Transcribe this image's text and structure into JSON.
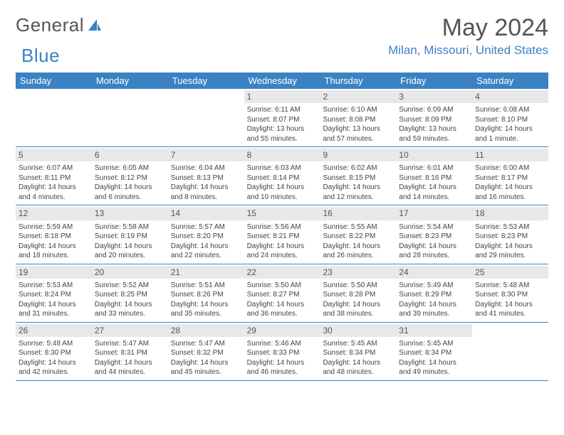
{
  "brand": {
    "part1": "General",
    "part2": "Blue"
  },
  "title": "May 2024",
  "location": "Milan, Missouri, United States",
  "colors": {
    "header_bg": "#3b82c4",
    "header_text": "#ffffff",
    "daynum_bg": "#e8e8e8",
    "text": "#333333",
    "brand_gray": "#555555",
    "brand_blue": "#3b82c4",
    "row_border": "#3b82c4",
    "page_bg": "#ffffff"
  },
  "weekdays": [
    "Sunday",
    "Monday",
    "Tuesday",
    "Wednesday",
    "Thursday",
    "Friday",
    "Saturday"
  ],
  "weeks": [
    [
      {
        "empty": true
      },
      {
        "empty": true
      },
      {
        "empty": true
      },
      {
        "num": "1",
        "sunrise": "Sunrise: 6:11 AM",
        "sunset": "Sunset: 8:07 PM",
        "daylight": "Daylight: 13 hours and 55 minutes."
      },
      {
        "num": "2",
        "sunrise": "Sunrise: 6:10 AM",
        "sunset": "Sunset: 8:08 PM",
        "daylight": "Daylight: 13 hours and 57 minutes."
      },
      {
        "num": "3",
        "sunrise": "Sunrise: 6:09 AM",
        "sunset": "Sunset: 8:09 PM",
        "daylight": "Daylight: 13 hours and 59 minutes."
      },
      {
        "num": "4",
        "sunrise": "Sunrise: 6:08 AM",
        "sunset": "Sunset: 8:10 PM",
        "daylight": "Daylight: 14 hours and 1 minute."
      }
    ],
    [
      {
        "num": "5",
        "sunrise": "Sunrise: 6:07 AM",
        "sunset": "Sunset: 8:11 PM",
        "daylight": "Daylight: 14 hours and 4 minutes."
      },
      {
        "num": "6",
        "sunrise": "Sunrise: 6:05 AM",
        "sunset": "Sunset: 8:12 PM",
        "daylight": "Daylight: 14 hours and 6 minutes."
      },
      {
        "num": "7",
        "sunrise": "Sunrise: 6:04 AM",
        "sunset": "Sunset: 8:13 PM",
        "daylight": "Daylight: 14 hours and 8 minutes."
      },
      {
        "num": "8",
        "sunrise": "Sunrise: 6:03 AM",
        "sunset": "Sunset: 8:14 PM",
        "daylight": "Daylight: 14 hours and 10 minutes."
      },
      {
        "num": "9",
        "sunrise": "Sunrise: 6:02 AM",
        "sunset": "Sunset: 8:15 PM",
        "daylight": "Daylight: 14 hours and 12 minutes."
      },
      {
        "num": "10",
        "sunrise": "Sunrise: 6:01 AM",
        "sunset": "Sunset: 8:16 PM",
        "daylight": "Daylight: 14 hours and 14 minutes."
      },
      {
        "num": "11",
        "sunrise": "Sunrise: 6:00 AM",
        "sunset": "Sunset: 8:17 PM",
        "daylight": "Daylight: 14 hours and 16 minutes."
      }
    ],
    [
      {
        "num": "12",
        "sunrise": "Sunrise: 5:59 AM",
        "sunset": "Sunset: 8:18 PM",
        "daylight": "Daylight: 14 hours and 18 minutes."
      },
      {
        "num": "13",
        "sunrise": "Sunrise: 5:58 AM",
        "sunset": "Sunset: 8:19 PM",
        "daylight": "Daylight: 14 hours and 20 minutes."
      },
      {
        "num": "14",
        "sunrise": "Sunrise: 5:57 AM",
        "sunset": "Sunset: 8:20 PM",
        "daylight": "Daylight: 14 hours and 22 minutes."
      },
      {
        "num": "15",
        "sunrise": "Sunrise: 5:56 AM",
        "sunset": "Sunset: 8:21 PM",
        "daylight": "Daylight: 14 hours and 24 minutes."
      },
      {
        "num": "16",
        "sunrise": "Sunrise: 5:55 AM",
        "sunset": "Sunset: 8:22 PM",
        "daylight": "Daylight: 14 hours and 26 minutes."
      },
      {
        "num": "17",
        "sunrise": "Sunrise: 5:54 AM",
        "sunset": "Sunset: 8:23 PM",
        "daylight": "Daylight: 14 hours and 28 minutes."
      },
      {
        "num": "18",
        "sunrise": "Sunrise: 5:53 AM",
        "sunset": "Sunset: 8:23 PM",
        "daylight": "Daylight: 14 hours and 29 minutes."
      }
    ],
    [
      {
        "num": "19",
        "sunrise": "Sunrise: 5:53 AM",
        "sunset": "Sunset: 8:24 PM",
        "daylight": "Daylight: 14 hours and 31 minutes."
      },
      {
        "num": "20",
        "sunrise": "Sunrise: 5:52 AM",
        "sunset": "Sunset: 8:25 PM",
        "daylight": "Daylight: 14 hours and 33 minutes."
      },
      {
        "num": "21",
        "sunrise": "Sunrise: 5:51 AM",
        "sunset": "Sunset: 8:26 PM",
        "daylight": "Daylight: 14 hours and 35 minutes."
      },
      {
        "num": "22",
        "sunrise": "Sunrise: 5:50 AM",
        "sunset": "Sunset: 8:27 PM",
        "daylight": "Daylight: 14 hours and 36 minutes."
      },
      {
        "num": "23",
        "sunrise": "Sunrise: 5:50 AM",
        "sunset": "Sunset: 8:28 PM",
        "daylight": "Daylight: 14 hours and 38 minutes."
      },
      {
        "num": "24",
        "sunrise": "Sunrise: 5:49 AM",
        "sunset": "Sunset: 8:29 PM",
        "daylight": "Daylight: 14 hours and 39 minutes."
      },
      {
        "num": "25",
        "sunrise": "Sunrise: 5:48 AM",
        "sunset": "Sunset: 8:30 PM",
        "daylight": "Daylight: 14 hours and 41 minutes."
      }
    ],
    [
      {
        "num": "26",
        "sunrise": "Sunrise: 5:48 AM",
        "sunset": "Sunset: 8:30 PM",
        "daylight": "Daylight: 14 hours and 42 minutes."
      },
      {
        "num": "27",
        "sunrise": "Sunrise: 5:47 AM",
        "sunset": "Sunset: 8:31 PM",
        "daylight": "Daylight: 14 hours and 44 minutes."
      },
      {
        "num": "28",
        "sunrise": "Sunrise: 5:47 AM",
        "sunset": "Sunset: 8:32 PM",
        "daylight": "Daylight: 14 hours and 45 minutes."
      },
      {
        "num": "29",
        "sunrise": "Sunrise: 5:46 AM",
        "sunset": "Sunset: 8:33 PM",
        "daylight": "Daylight: 14 hours and 46 minutes."
      },
      {
        "num": "30",
        "sunrise": "Sunrise: 5:45 AM",
        "sunset": "Sunset: 8:34 PM",
        "daylight": "Daylight: 14 hours and 48 minutes."
      },
      {
        "num": "31",
        "sunrise": "Sunrise: 5:45 AM",
        "sunset": "Sunset: 8:34 PM",
        "daylight": "Daylight: 14 hours and 49 minutes."
      },
      {
        "empty": true
      }
    ]
  ]
}
